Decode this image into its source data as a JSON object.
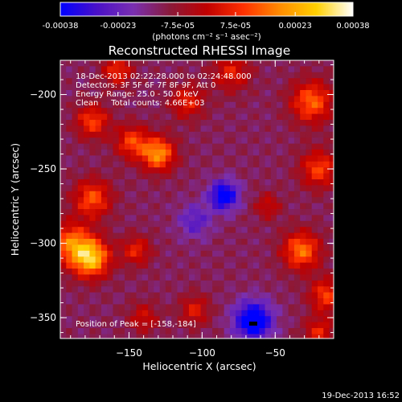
{
  "colorbar": {
    "tick_labels": [
      "-0.00038",
      "-0.00023",
      "-7.5e-05",
      "7.5e-05",
      "0.00023",
      "0.00038"
    ],
    "tick_values": [
      -0.00038,
      -0.00023,
      -7.5e-05,
      7.5e-05,
      0.00023,
      0.00038
    ],
    "range": [
      -0.00038,
      0.00038
    ],
    "unit_label": "(photons cm⁻² s⁻¹ asec⁻²)",
    "colors": [
      "#0000ff",
      "#4a10c8",
      "#7a2fb0",
      "#8a1a3a",
      "#c00000",
      "#ff3000",
      "#ff8c00",
      "#ffd000",
      "#ffffff"
    ]
  },
  "chart_data": {
    "type": "heatmap",
    "title": "Reconstructed RHESSI Image",
    "xlabel": "Heliocentric X (arcsec)",
    "ylabel": "Heliocentric Y (arcsec)",
    "xlim": [
      -197,
      -10
    ],
    "ylim": [
      -364,
      -177
    ],
    "x_ticks": [
      -150,
      -100,
      -50
    ],
    "y_ticks": [
      -200,
      -250,
      -300,
      -350
    ],
    "x_tick_labels": [
      "−150",
      "−100",
      "−50"
    ],
    "y_tick_labels": [
      "−200",
      "−250",
      "−300",
      "−350"
    ],
    "peak": [
      -158,
      -184
    ],
    "min_marker": [
      -65,
      -354
    ],
    "sources": [
      {
        "x": -176,
        "y": -310,
        "sigma": 9,
        "amp": 0.00038
      },
      {
        "x": -190,
        "y": -300,
        "sigma": 10,
        "amp": 0.00026
      },
      {
        "x": -175,
        "y": -270,
        "sigma": 9,
        "amp": 0.00024
      },
      {
        "x": -130,
        "y": -240,
        "sigma": 8,
        "amp": 0.00032
      },
      {
        "x": -148,
        "y": -232,
        "sigma": 8,
        "amp": 0.00022
      },
      {
        "x": -175,
        "y": -218,
        "sigma": 8,
        "amp": 0.00022
      },
      {
        "x": -145,
        "y": -305,
        "sigma": 7,
        "amp": 0.00018
      },
      {
        "x": -110,
        "y": -205,
        "sigma": 8,
        "amp": 0.00018
      },
      {
        "x": -158,
        "y": -184,
        "sigma": 7,
        "amp": 0.0002
      },
      {
        "x": -80,
        "y": -185,
        "sigma": 9,
        "amp": 0.00017
      },
      {
        "x": -25,
        "y": -205,
        "sigma": 10,
        "amp": 0.00026
      },
      {
        "x": -20,
        "y": -250,
        "sigma": 9,
        "amp": 0.00022
      },
      {
        "x": -32,
        "y": -305,
        "sigma": 9,
        "amp": 0.00028
      },
      {
        "x": -15,
        "y": -335,
        "sigma": 8,
        "amp": 0.00022
      },
      {
        "x": -20,
        "y": -360,
        "sigma": 7,
        "amp": 0.00018
      },
      {
        "x": -105,
        "y": -345,
        "sigma": 7,
        "amp": 0.00016
      },
      {
        "x": -140,
        "y": -350,
        "sigma": 7,
        "amp": 0.00014
      },
      {
        "x": -55,
        "y": -275,
        "sigma": 6,
        "amp": 0.00014
      },
      {
        "x": -85,
        "y": -268,
        "sigma": 7,
        "amp": -0.0003
      },
      {
        "x": -65,
        "y": -352,
        "sigma": 9,
        "amp": -0.00034
      },
      {
        "x": -105,
        "y": -285,
        "sigma": 8,
        "amp": -0.00014
      }
    ],
    "info": [
      "18-Dec-2013 02:22:28.000 to 02:24:48.000",
      "Detectors: 3F 5F 6F 7F 8F 9F, Att 0",
      "Energy Range: 25.0 - 50.0 keV",
      "Clean     Total counts: 4.66E+03"
    ],
    "peak_label": "Position of Peak = [-158,-184]"
  },
  "footer_date": "19-Dec-2013 16:52"
}
